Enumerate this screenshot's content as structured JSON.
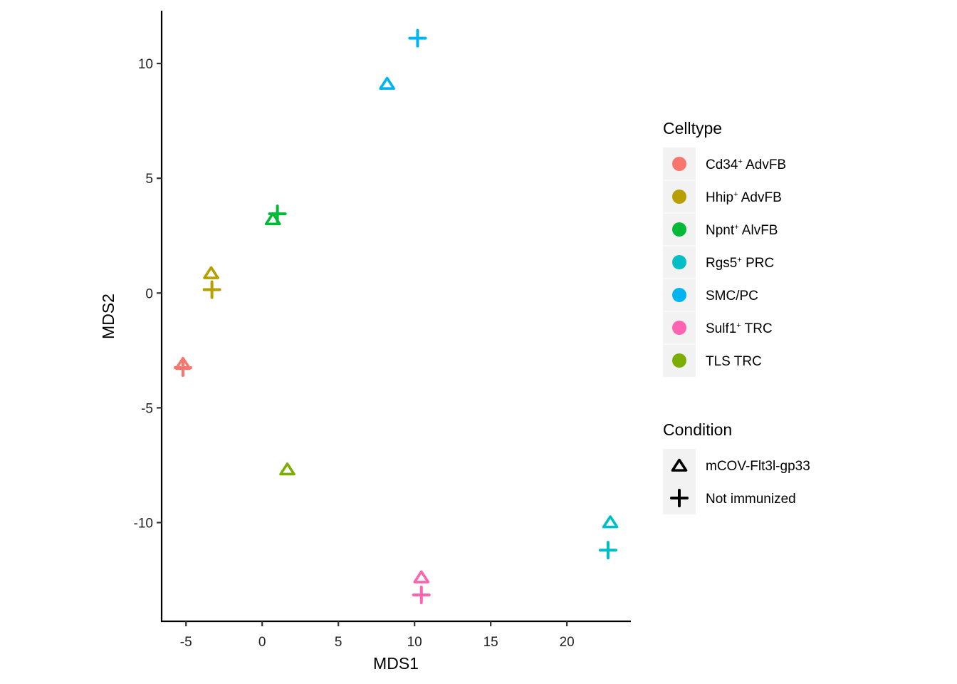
{
  "chart_data": {
    "type": "scatter",
    "title": "",
    "xlabel": "MDS1",
    "ylabel": "MDS2",
    "xlim": [
      -6.6,
      24.2
    ],
    "ylim": [
      -14.3,
      12.3
    ],
    "x_ticks": [
      -5,
      0,
      5,
      10,
      15,
      20
    ],
    "y_ticks": [
      -10,
      -5,
      0,
      5,
      10
    ],
    "x_tick_labels": [
      "-5",
      "0",
      "5",
      "10",
      "15",
      "20"
    ],
    "y_tick_labels": [
      "-10",
      "-5",
      "0",
      "5",
      "10"
    ],
    "grid": false,
    "legend_placement": "right",
    "legends": {
      "celltype": {
        "title": "Celltype",
        "entries": [
          {
            "key": "cd34",
            "name": "Cd34",
            "sup": "+",
            "suffix": " AdvFB",
            "color": "#F8766D"
          },
          {
            "key": "hhip",
            "name": "Hhip",
            "sup": "+",
            "suffix": " AdvFB",
            "color": "#B79F00"
          },
          {
            "key": "npnt",
            "name": "Npnt",
            "sup": "+",
            "suffix": " AlvFB",
            "color": "#00BA38"
          },
          {
            "key": "rgs5",
            "name": "Rgs5",
            "sup": "+",
            "suffix": " PRC",
            "color": "#00BFC4"
          },
          {
            "key": "smc",
            "name": "SMC/PC",
            "sup": "",
            "suffix": "",
            "color": "#00B4F0"
          },
          {
            "key": "sulf1",
            "name": "Sulf1",
            "sup": "+",
            "suffix": " TRC",
            "color": "#FF64B0"
          },
          {
            "key": "tls",
            "name": "TLS TRC",
            "sup": "",
            "suffix": "",
            "color": "#7CAE00"
          }
        ]
      },
      "condition": {
        "title": "Condition",
        "entries": [
          {
            "key": "mcov",
            "label": "mCOV-Flt3l-gp33",
            "shape": "triangle-open"
          },
          {
            "key": "naive",
            "label": "Not immunized",
            "shape": "plus"
          }
        ]
      }
    },
    "points": [
      {
        "celltype": "smc",
        "condition": "mcov",
        "x": 8.2,
        "y": 9.1
      },
      {
        "celltype": "smc",
        "condition": "naive",
        "x": 10.2,
        "y": 11.1
      },
      {
        "celltype": "npnt",
        "condition": "mcov",
        "x": 0.7,
        "y": 3.2
      },
      {
        "celltype": "npnt",
        "condition": "naive",
        "x": 1.0,
        "y": 3.45
      },
      {
        "celltype": "hhip",
        "condition": "mcov",
        "x": -3.35,
        "y": 0.85
      },
      {
        "celltype": "hhip",
        "condition": "naive",
        "x": -3.3,
        "y": 0.15
      },
      {
        "celltype": "cd34",
        "condition": "mcov",
        "x": -5.2,
        "y": -3.1
      },
      {
        "celltype": "cd34",
        "condition": "naive",
        "x": -5.2,
        "y": -3.25
      },
      {
        "celltype": "tls",
        "condition": "mcov",
        "x": 1.65,
        "y": -7.7
      },
      {
        "celltype": "sulf1",
        "condition": "mcov",
        "x": 10.45,
        "y": -12.4
      },
      {
        "celltype": "sulf1",
        "condition": "naive",
        "x": 10.45,
        "y": -13.15
      },
      {
        "celltype": "rgs5",
        "condition": "mcov",
        "x": 22.85,
        "y": -10.0
      },
      {
        "celltype": "rgs5",
        "condition": "naive",
        "x": 22.7,
        "y": -11.2
      }
    ]
  }
}
